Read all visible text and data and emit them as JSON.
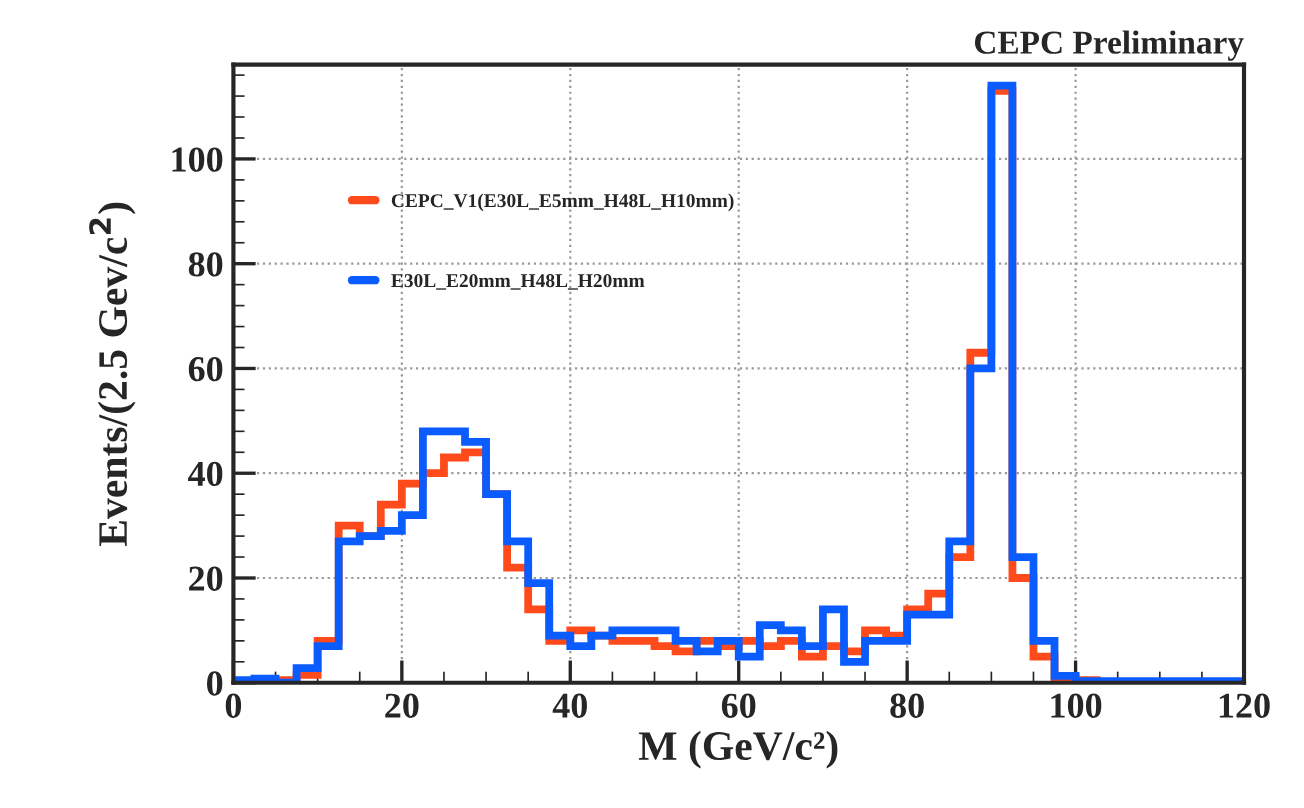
{
  "chart_data": {
    "type": "histogram",
    "title": "CEPC Preliminary",
    "xlabel": "M (GeV/c²)",
    "ylabel": "Events/(2.5 Gev/c$^{2}$)",
    "bins": [
      0,
      2.5,
      5,
      7.5,
      10,
      12.5,
      15,
      17.5,
      20,
      22.5,
      25,
      27.5,
      30,
      32.5,
      35,
      37.5,
      40,
      42.5,
      45,
      47.5,
      50,
      52.5,
      55,
      57.5,
      60,
      62.5,
      65,
      67.5,
      70,
      72.5,
      75,
      77.5,
      80,
      82.5,
      85,
      87.5,
      90,
      92.5,
      95,
      97.5,
      100,
      102.5,
      105,
      107.5,
      110,
      112.5,
      115,
      117.5,
      120
    ],
    "series": [
      {
        "name": "CEPC_V1(E30L_E5mm_H48L_H10mm)",
        "color": "#ff4a1c",
        "values": [
          0.3,
          0.5,
          0.5,
          1.5,
          8,
          30,
          28,
          34,
          38,
          40,
          43,
          44,
          36,
          22,
          14,
          8,
          10,
          9,
          8,
          8,
          7,
          6,
          8,
          7,
          8,
          7,
          8,
          5,
          7,
          6,
          10,
          9,
          14,
          17,
          24,
          63,
          113,
          20,
          5,
          1,
          0.5,
          0,
          0,
          0,
          0,
          0,
          0,
          0
        ]
      },
      {
        "name": "E30L_E20mm_H48L_H20mm",
        "color": "#0a5cff",
        "values": [
          0.5,
          0.8,
          0,
          2.8,
          7,
          27,
          28,
          29,
          32,
          48,
          48,
          46,
          36,
          27,
          19,
          9,
          7,
          9,
          10,
          10,
          10,
          8,
          6,
          8,
          5,
          11,
          10,
          7,
          14,
          4,
          8,
          8,
          13,
          13,
          27,
          60,
          114,
          24,
          8,
          1.3,
          0.3,
          0.3,
          0.3,
          0.3,
          0.3,
          0.3,
          0.3,
          0.3
        ]
      }
    ],
    "xlim": [
      0,
      120
    ],
    "ylim": [
      0,
      118
    ],
    "xticks": [
      0,
      20,
      40,
      60,
      80,
      100,
      120
    ],
    "yticks": [
      0,
      20,
      40,
      60,
      80,
      100
    ],
    "grid": true,
    "legend": "top left"
  }
}
